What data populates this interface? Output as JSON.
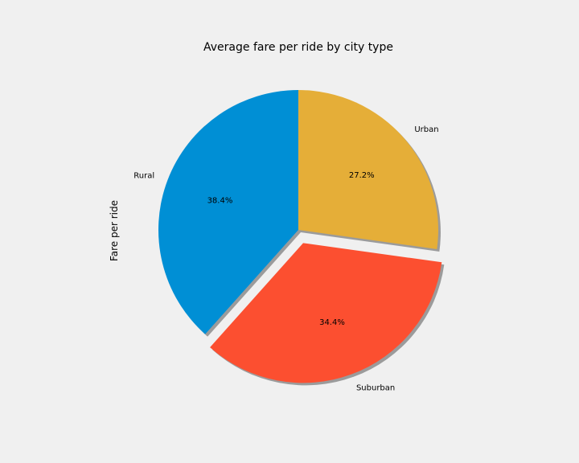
{
  "chart_data": {
    "type": "pie",
    "title": "Average fare per ride by city type",
    "ylabel": "Fare per ride",
    "start_angle_deg": 90,
    "shadow": true,
    "labels": [
      "Rural",
      "Suburban",
      "Urban"
    ],
    "values": [
      38.4,
      34.4,
      27.2
    ],
    "percent_labels": [
      "38.4%",
      "34.4%",
      "27.2%"
    ],
    "colors": [
      "#008fd5",
      "#fc4f30",
      "#e5ae38"
    ],
    "explode": [
      0,
      0.1,
      0
    ]
  }
}
